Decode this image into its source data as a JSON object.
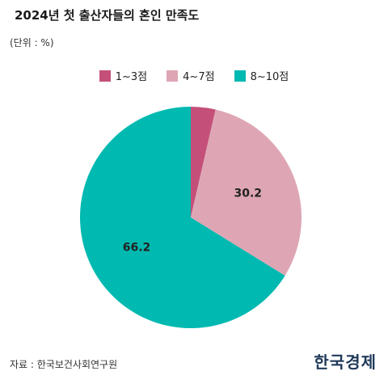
{
  "title": "2024년 첫 출산자들의 혼인 만족도",
  "unit": "(단위 : %)",
  "source": "자료 : 한국보건사회연구원",
  "brand": "한국경제",
  "colors": {
    "1~3점": "#c4507a",
    "4~7점": "#dea6b4",
    "8~10점": "#00b9b0"
  },
  "chart_data": {
    "type": "pie",
    "title": "2024년 첫 출산자들의 혼인 만족도",
    "unit": "%",
    "legend_position": "top-center",
    "categories": [
      "1~3점",
      "4~7점",
      "8~10점"
    ],
    "values": [
      3.6,
      30.2,
      66.2
    ],
    "data_labels": [
      "",
      "30.2",
      "66.2"
    ]
  }
}
